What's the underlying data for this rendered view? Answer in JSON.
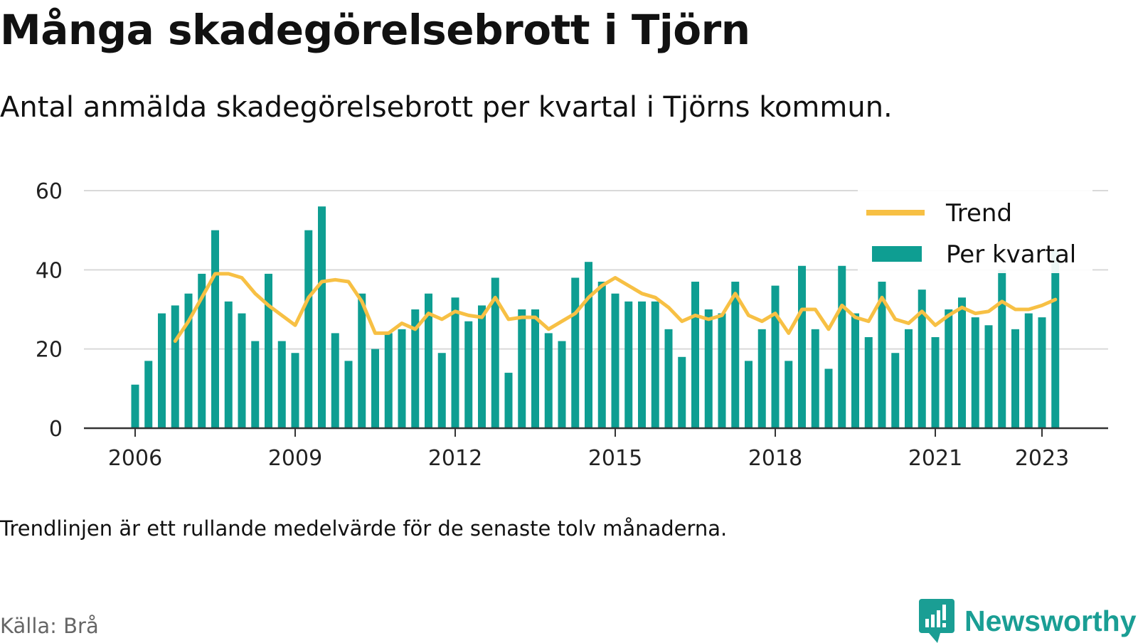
{
  "title": "Många skadegörelsebrott i Tjörn",
  "subtitle": "Antal anmälda skadegörelsebrott per kvartal i Tjörns kommun.",
  "note": "Trendlinjen är ett rullande medelvärde för de senaste tolv månaderna.",
  "source": "Källa: Brå",
  "brand": {
    "name": "Newsworthy",
    "icon": "newsworthy-logo-icon",
    "color": "#1a9e94"
  },
  "colors": {
    "bars": "#0e9e92",
    "trend": "#f7c044",
    "grid": "#d9d9d9",
    "axis": "#333333"
  },
  "chart_data": {
    "type": "bar",
    "start_quarter": "2006 Q1",
    "xticks": [
      "2006",
      "2009",
      "2012",
      "2015",
      "2018",
      "2021",
      "2023"
    ],
    "yticks": [
      "0",
      "20",
      "40",
      "60"
    ],
    "ylim": [
      0,
      60
    ],
    "grid": true,
    "legend": {
      "position": "top-right",
      "entries": [
        "Trend",
        "Per kvartal"
      ]
    },
    "series": [
      {
        "name": "Per kvartal",
        "type": "bar",
        "values": [
          11,
          17,
          29,
          31,
          34,
          39,
          50,
          32,
          29,
          22,
          39,
          22,
          19,
          50,
          56,
          24,
          17,
          34,
          20,
          24,
          25,
          30,
          34,
          19,
          33,
          27,
          31,
          38,
          14,
          30,
          30,
          24,
          22,
          38,
          42,
          37,
          34,
          32,
          32,
          32,
          25,
          18,
          37,
          30,
          29,
          37,
          17,
          25,
          36,
          17,
          41,
          25,
          15,
          41,
          29,
          23,
          37,
          19,
          25,
          35,
          23,
          30,
          33,
          28,
          26,
          40,
          25,
          29,
          28,
          45
        ]
      },
      {
        "name": "Trend",
        "type": "line",
        "start_index": 3,
        "values": [
          22,
          27,
          33,
          39,
          39,
          38,
          34,
          31,
          28.5,
          26,
          33,
          37,
          37.5,
          37,
          32,
          24,
          24,
          26.5,
          25,
          29,
          27.5,
          29.5,
          28.5,
          28,
          33,
          27.5,
          28,
          28,
          25,
          27,
          29,
          33,
          36,
          38,
          36,
          34,
          33,
          30.5,
          27,
          28.5,
          27.5,
          28.5,
          34,
          28.5,
          27,
          29,
          24,
          30,
          30,
          25,
          31,
          28,
          27,
          33,
          27.5,
          26.5,
          29.5,
          26,
          28.5,
          30.5,
          29,
          29.5,
          32,
          30,
          30,
          31,
          32.5
        ]
      }
    ]
  }
}
